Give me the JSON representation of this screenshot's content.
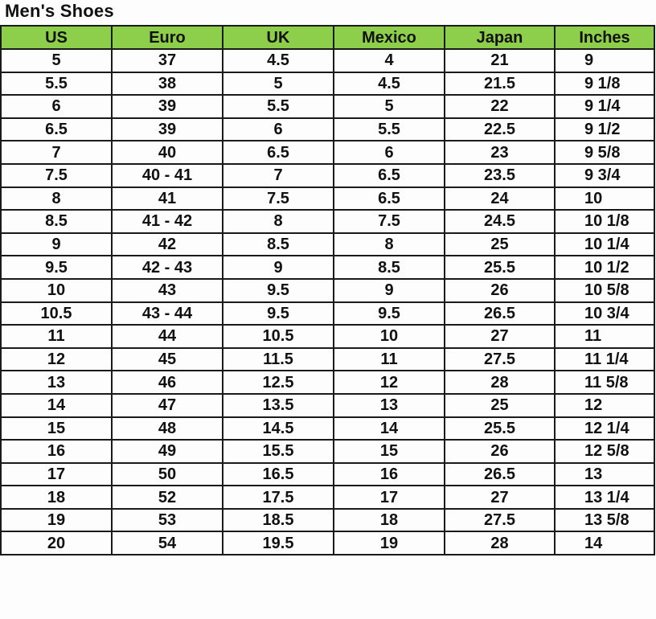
{
  "title": "Men's Shoes",
  "colors": {
    "header_bg": "#8dcf4a",
    "border": "#1a1a1a"
  },
  "table": {
    "headers": [
      "US",
      "Euro",
      "UK",
      "Mexico",
      "Japan",
      "Inches"
    ],
    "rows": [
      [
        "5",
        "37",
        "4.5",
        "4",
        "21",
        "9"
      ],
      [
        "5.5",
        "38",
        "5",
        "4.5",
        "21.5",
        "9 1/8"
      ],
      [
        "6",
        "39",
        "5.5",
        "5",
        "22",
        "9 1/4"
      ],
      [
        "6.5",
        "39",
        "6",
        "5.5",
        "22.5",
        "9 1/2"
      ],
      [
        "7",
        "40",
        "6.5",
        "6",
        "23",
        "9 5/8"
      ],
      [
        "7.5",
        "40 - 41",
        "7",
        "6.5",
        "23.5",
        "9 3/4"
      ],
      [
        "8",
        "41",
        "7.5",
        "6.5",
        "24",
        "10"
      ],
      [
        "8.5",
        "41 - 42",
        "8",
        "7.5",
        "24.5",
        "10 1/8"
      ],
      [
        "9",
        "42",
        "8.5",
        "8",
        "25",
        "10 1/4"
      ],
      [
        "9.5",
        "42 - 43",
        "9",
        "8.5",
        "25.5",
        "10 1/2"
      ],
      [
        "10",
        "43",
        "9.5",
        "9",
        "26",
        "10 5/8"
      ],
      [
        "10.5",
        "43 - 44",
        "9.5",
        "9.5",
        "26.5",
        "10 3/4"
      ],
      [
        "11",
        "44",
        "10.5",
        "10",
        "27",
        "11"
      ],
      [
        "12",
        "45",
        "11.5",
        "11",
        "27.5",
        "11 1/4"
      ],
      [
        "13",
        "46",
        "12.5",
        "12",
        "28",
        "11 5/8"
      ],
      [
        "14",
        "47",
        "13.5",
        "13",
        "25",
        "12"
      ],
      [
        "15",
        "48",
        "14.5",
        "14",
        "25.5",
        "12 1/4"
      ],
      [
        "16",
        "49",
        "15.5",
        "15",
        "26",
        "12 5/8"
      ],
      [
        "17",
        "50",
        "16.5",
        "16",
        "26.5",
        "13"
      ],
      [
        "18",
        "52",
        "17.5",
        "17",
        "27",
        "13 1/4"
      ],
      [
        "19",
        "53",
        "18.5",
        "18",
        "27.5",
        "13 5/8"
      ],
      [
        "20",
        "54",
        "19.5",
        "19",
        "28",
        "14"
      ]
    ]
  }
}
